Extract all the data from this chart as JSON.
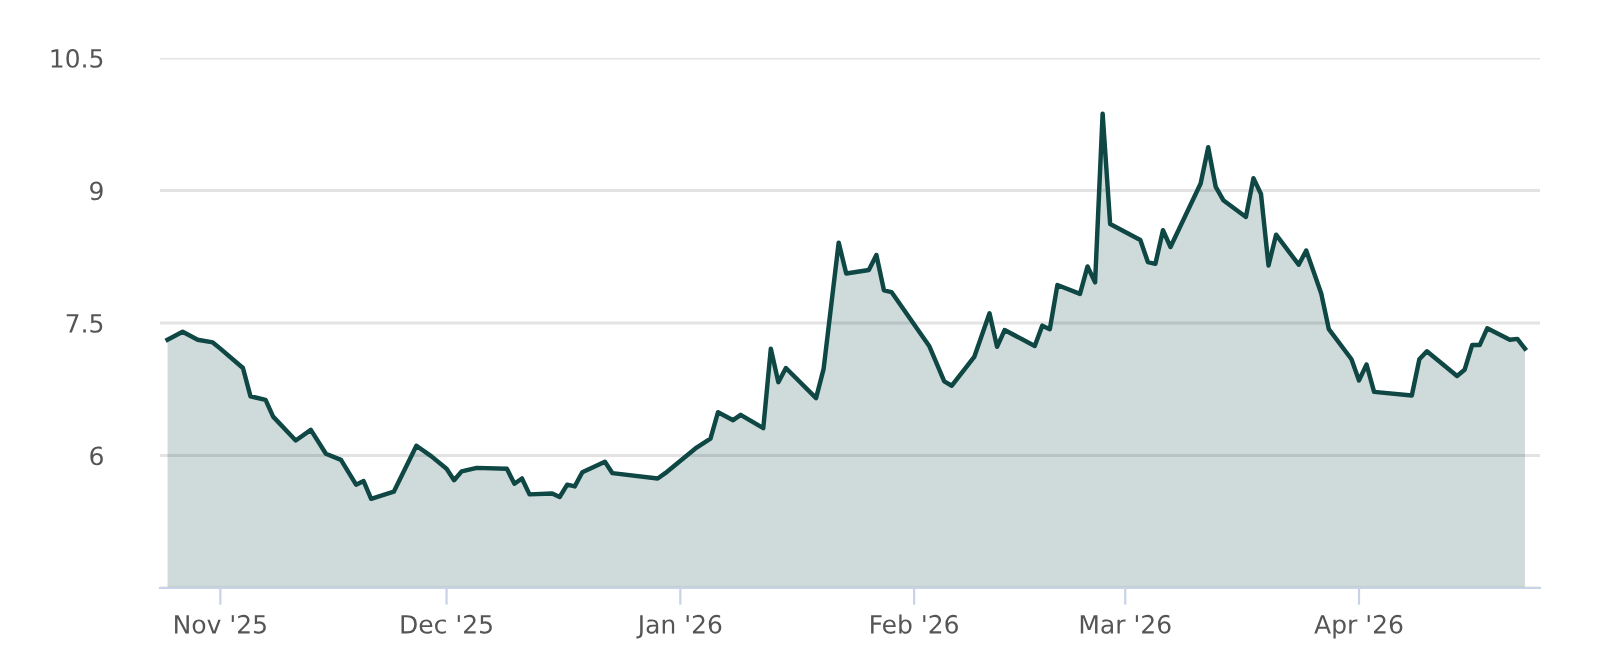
{
  "chart_data": {
    "type": "area",
    "x": [
      "2025-10-25",
      "2025-10-27",
      "2025-10-29",
      "2025-10-31",
      "2025-11-01",
      "2025-11-04",
      "2025-11-05",
      "2025-11-07",
      "2025-11-08",
      "2025-11-11",
      "2025-11-13",
      "2025-11-15",
      "2025-11-17",
      "2025-11-19",
      "2025-11-20",
      "2025-11-21",
      "2025-11-24",
      "2025-11-27",
      "2025-11-29",
      "2025-12-01",
      "2025-12-02",
      "2025-12-03",
      "2025-12-05",
      "2025-12-09",
      "2025-12-10",
      "2025-12-11",
      "2025-12-12",
      "2025-12-15",
      "2025-12-16",
      "2025-12-17",
      "2025-12-18",
      "2025-12-19",
      "2025-12-22",
      "2025-12-23",
      "2025-12-29",
      "2025-12-30",
      "2026-01-03",
      "2026-01-05",
      "2026-01-06",
      "2026-01-08",
      "2026-01-09",
      "2026-01-12",
      "2026-01-13",
      "2026-01-14",
      "2026-01-15",
      "2026-01-19",
      "2026-01-20",
      "2026-01-22",
      "2026-01-23",
      "2026-01-26",
      "2026-01-27",
      "2026-01-28",
      "2026-01-29",
      "2026-02-03",
      "2026-02-05",
      "2026-02-06",
      "2026-02-09",
      "2026-02-11",
      "2026-02-12",
      "2026-02-13",
      "2026-02-17",
      "2026-02-18",
      "2026-02-19",
      "2026-02-20",
      "2026-02-23",
      "2026-02-24",
      "2026-02-25",
      "2026-02-26",
      "2026-02-27",
      "2026-03-03",
      "2026-03-04",
      "2026-03-05",
      "2026-03-06",
      "2026-03-07",
      "2026-03-11",
      "2026-03-12",
      "2026-03-13",
      "2026-03-14",
      "2026-03-17",
      "2026-03-18",
      "2026-03-19",
      "2026-03-20",
      "2026-03-21",
      "2026-03-24",
      "2026-03-25",
      "2026-03-27",
      "2026-03-28",
      "2026-03-31",
      "2026-04-01",
      "2026-04-02",
      "2026-04-03",
      "2026-04-08",
      "2026-04-09",
      "2026-04-10",
      "2026-04-14",
      "2026-04-15",
      "2026-04-16",
      "2026-04-17",
      "2026-04-18",
      "2026-04-21",
      "2026-04-22",
      "2026-04-23"
    ],
    "series": [
      {
        "color": "#0e4744",
        "values": [
          7.31,
          7.4,
          7.31,
          7.28,
          7.21,
          6.99,
          6.67,
          6.63,
          6.44,
          6.17,
          6.29,
          6.02,
          5.95,
          5.67,
          5.71,
          5.51,
          5.59,
          6.11,
          5.99,
          5.85,
          5.72,
          5.82,
          5.86,
          5.85,
          5.68,
          5.74,
          5.56,
          5.57,
          5.53,
          5.67,
          5.65,
          5.81,
          5.93,
          5.8,
          5.74,
          5.8,
          6.08,
          6.19,
          6.49,
          6.4,
          6.46,
          6.31,
          7.21,
          6.83,
          6.99,
          6.65,
          6.98,
          8.41,
          8.06,
          8.1,
          8.27,
          7.87,
          7.85,
          7.24,
          6.84,
          6.79,
          7.12,
          7.61,
          7.23,
          7.42,
          7.24,
          7.47,
          7.43,
          7.93,
          7.83,
          8.14,
          7.96,
          9.87,
          8.62,
          8.44,
          8.19,
          8.17,
          8.55,
          8.36,
          9.08,
          9.49,
          9.04,
          8.89,
          8.7,
          9.14,
          8.96,
          8.15,
          8.5,
          8.16,
          8.32,
          7.83,
          7.43,
          7.09,
          6.85,
          7.03,
          6.72,
          6.68,
          7.09,
          7.18,
          6.9,
          6.97,
          7.25,
          7.25,
          7.44,
          7.31,
          7.32,
          7.21
        ]
      }
    ],
    "xlim": [
      "2025-10-24",
      "2026-04-25"
    ],
    "xticks": [
      {
        "value": "2025-11-01",
        "label": "Nov '25"
      },
      {
        "value": "2025-12-01",
        "label": "Dec '25"
      },
      {
        "value": "2026-01-01",
        "label": "Jan '26"
      },
      {
        "value": "2026-02-01",
        "label": "Feb '26"
      },
      {
        "value": "2026-03-01",
        "label": "Mar '26"
      },
      {
        "value": "2026-04-01",
        "label": "Apr '26"
      }
    ],
    "ylim": [
      4.5,
      10.5
    ],
    "yticks": [
      {
        "value": 4.5,
        "label": null
      },
      6,
      7.5,
      9,
      10.5
    ],
    "grid": "y",
    "legend": false
  }
}
